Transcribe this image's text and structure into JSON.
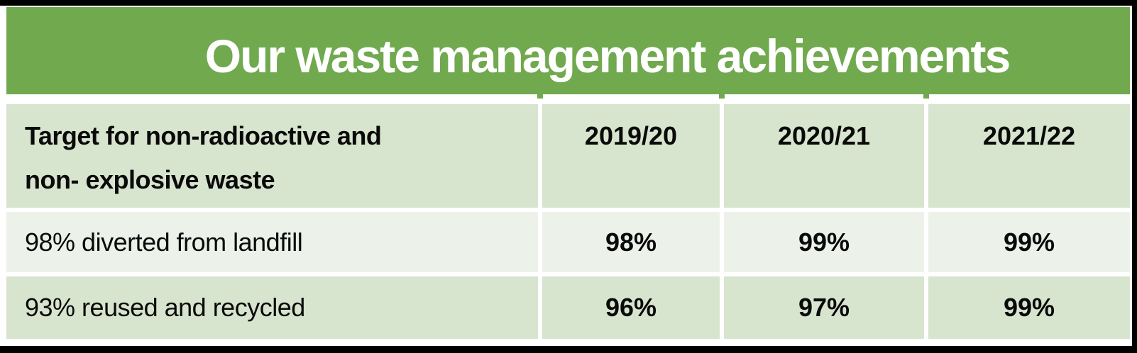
{
  "title": "Our waste management achievements",
  "colors": {
    "title_bg": "#71A94E",
    "header_bg": "#D7E4CE",
    "row_alt_bg": "#ECF2EA",
    "title_text": "#FFFFFF",
    "body_text": "#0A0A0A",
    "frame": "#000000"
  },
  "table": {
    "header": {
      "col1_line1": "Target for non-radioactive and",
      "col1_line2": "non- explosive waste",
      "years": [
        "2019/20",
        "2020/21",
        "2021/22"
      ]
    },
    "rows": [
      {
        "label": "98% diverted from landfill",
        "values": [
          "98%",
          "99%",
          "99%"
        ]
      },
      {
        "label": "93% reused and recycled",
        "values": [
          "96%",
          "97%",
          "99%"
        ]
      }
    ]
  },
  "chart_data": {
    "type": "table",
    "title": "Our waste management achievements",
    "columns": [
      "Target for non-radioactive and non- explosive waste",
      "2019/20",
      "2020/21",
      "2021/22"
    ],
    "rows": [
      [
        "98% diverted from landfill",
        "98%",
        "99%",
        "99%"
      ],
      [
        "93% reused and recycled",
        "96%",
        "97%",
        "99%"
      ]
    ],
    "units": "percent",
    "notes": "Banded table: header and last row light green, middle row pale green; green title banner"
  }
}
